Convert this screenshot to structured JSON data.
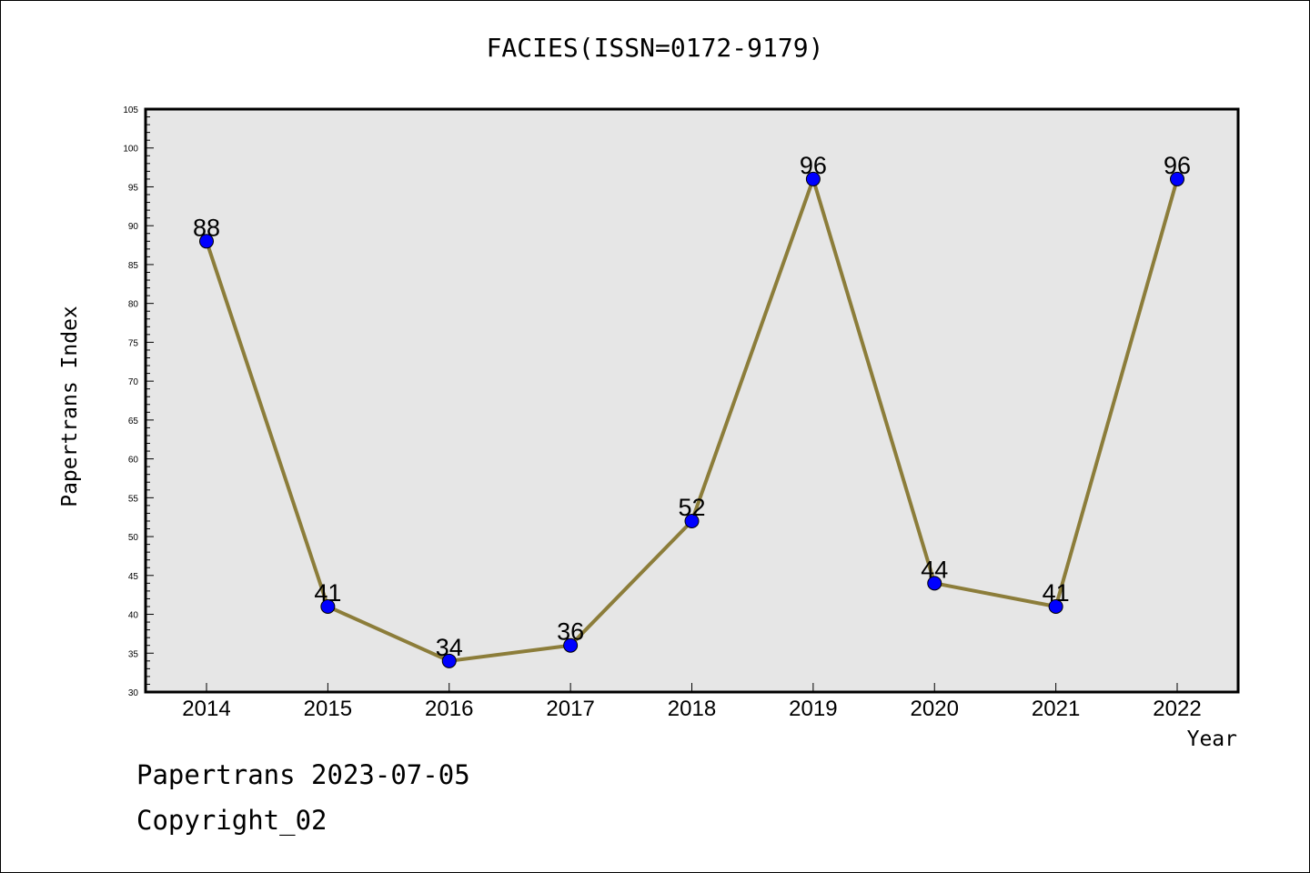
{
  "chart_data": {
    "type": "line",
    "title": "FACIES(ISSN=0172-9179)",
    "xlabel": "Year",
    "ylabel": "Papertrans Index",
    "categories": [
      "2014",
      "2015",
      "2016",
      "2017",
      "2018",
      "2019",
      "2020",
      "2021",
      "2022"
    ],
    "values": [
      88,
      41,
      34,
      36,
      52,
      96,
      44,
      41,
      96
    ],
    "ylim": [
      30,
      105
    ],
    "yticks": [
      30,
      35,
      40,
      45,
      50,
      55,
      60,
      65,
      70,
      75,
      80,
      85,
      90,
      95,
      100,
      105
    ],
    "grid": false,
    "legend": "none",
    "data_labels": true,
    "colors": {
      "line": "#8c7d3a",
      "marker": "#0000ff",
      "plot_background": "#e6e6e6"
    }
  },
  "footer": {
    "line1": "Papertrans 2023-07-05",
    "line2": "Copyright_02"
  }
}
